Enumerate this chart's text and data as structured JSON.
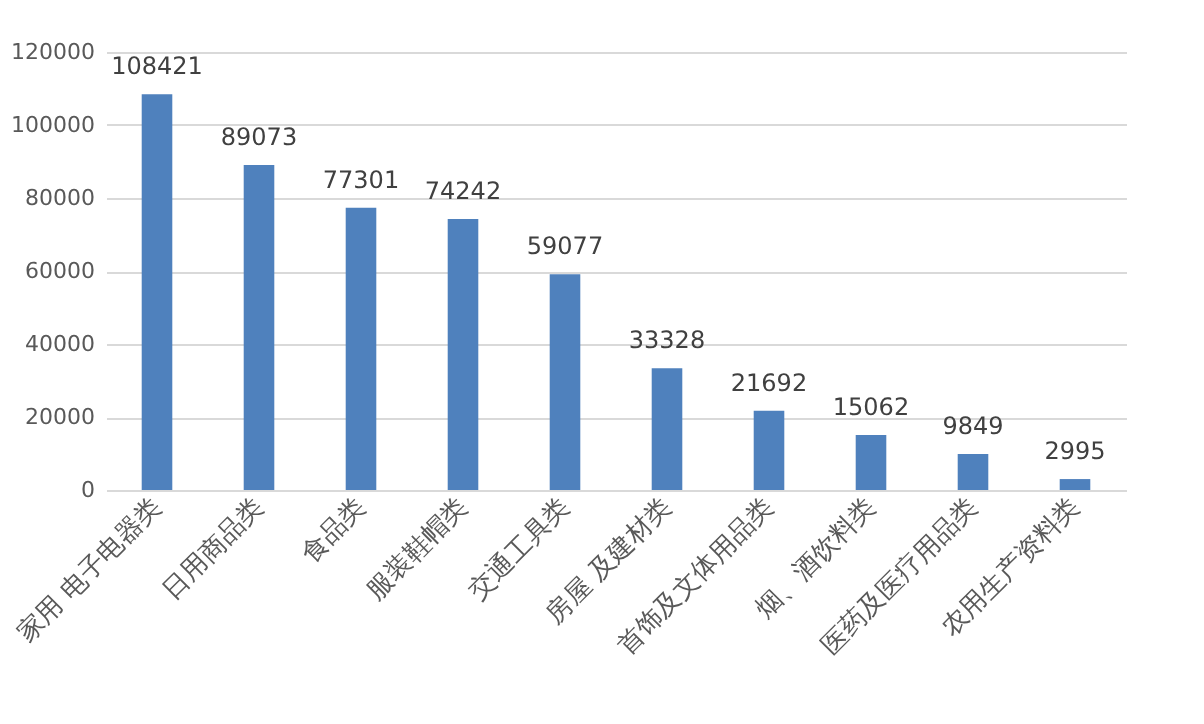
{
  "chart_data": {
    "type": "bar",
    "categories": [
      "家用 电子电器类",
      "日用商品类",
      "食品类",
      "服装鞋帽类",
      "交通工具类",
      "房屋 及建材类",
      "首饰及文体用品类",
      "烟、酒饮料类",
      "医药及医疗用品类",
      "农用生产资料类"
    ],
    "values": [
      108421,
      89073,
      77301,
      74242,
      59077,
      33328,
      21692,
      15062,
      9849,
      2995
    ],
    "color": "#4f81bd",
    "ylim": [
      0,
      120000
    ],
    "yticks": [
      0,
      20000,
      40000,
      60000,
      80000,
      100000,
      120000
    ],
    "grid": "y",
    "data_labels": true
  }
}
